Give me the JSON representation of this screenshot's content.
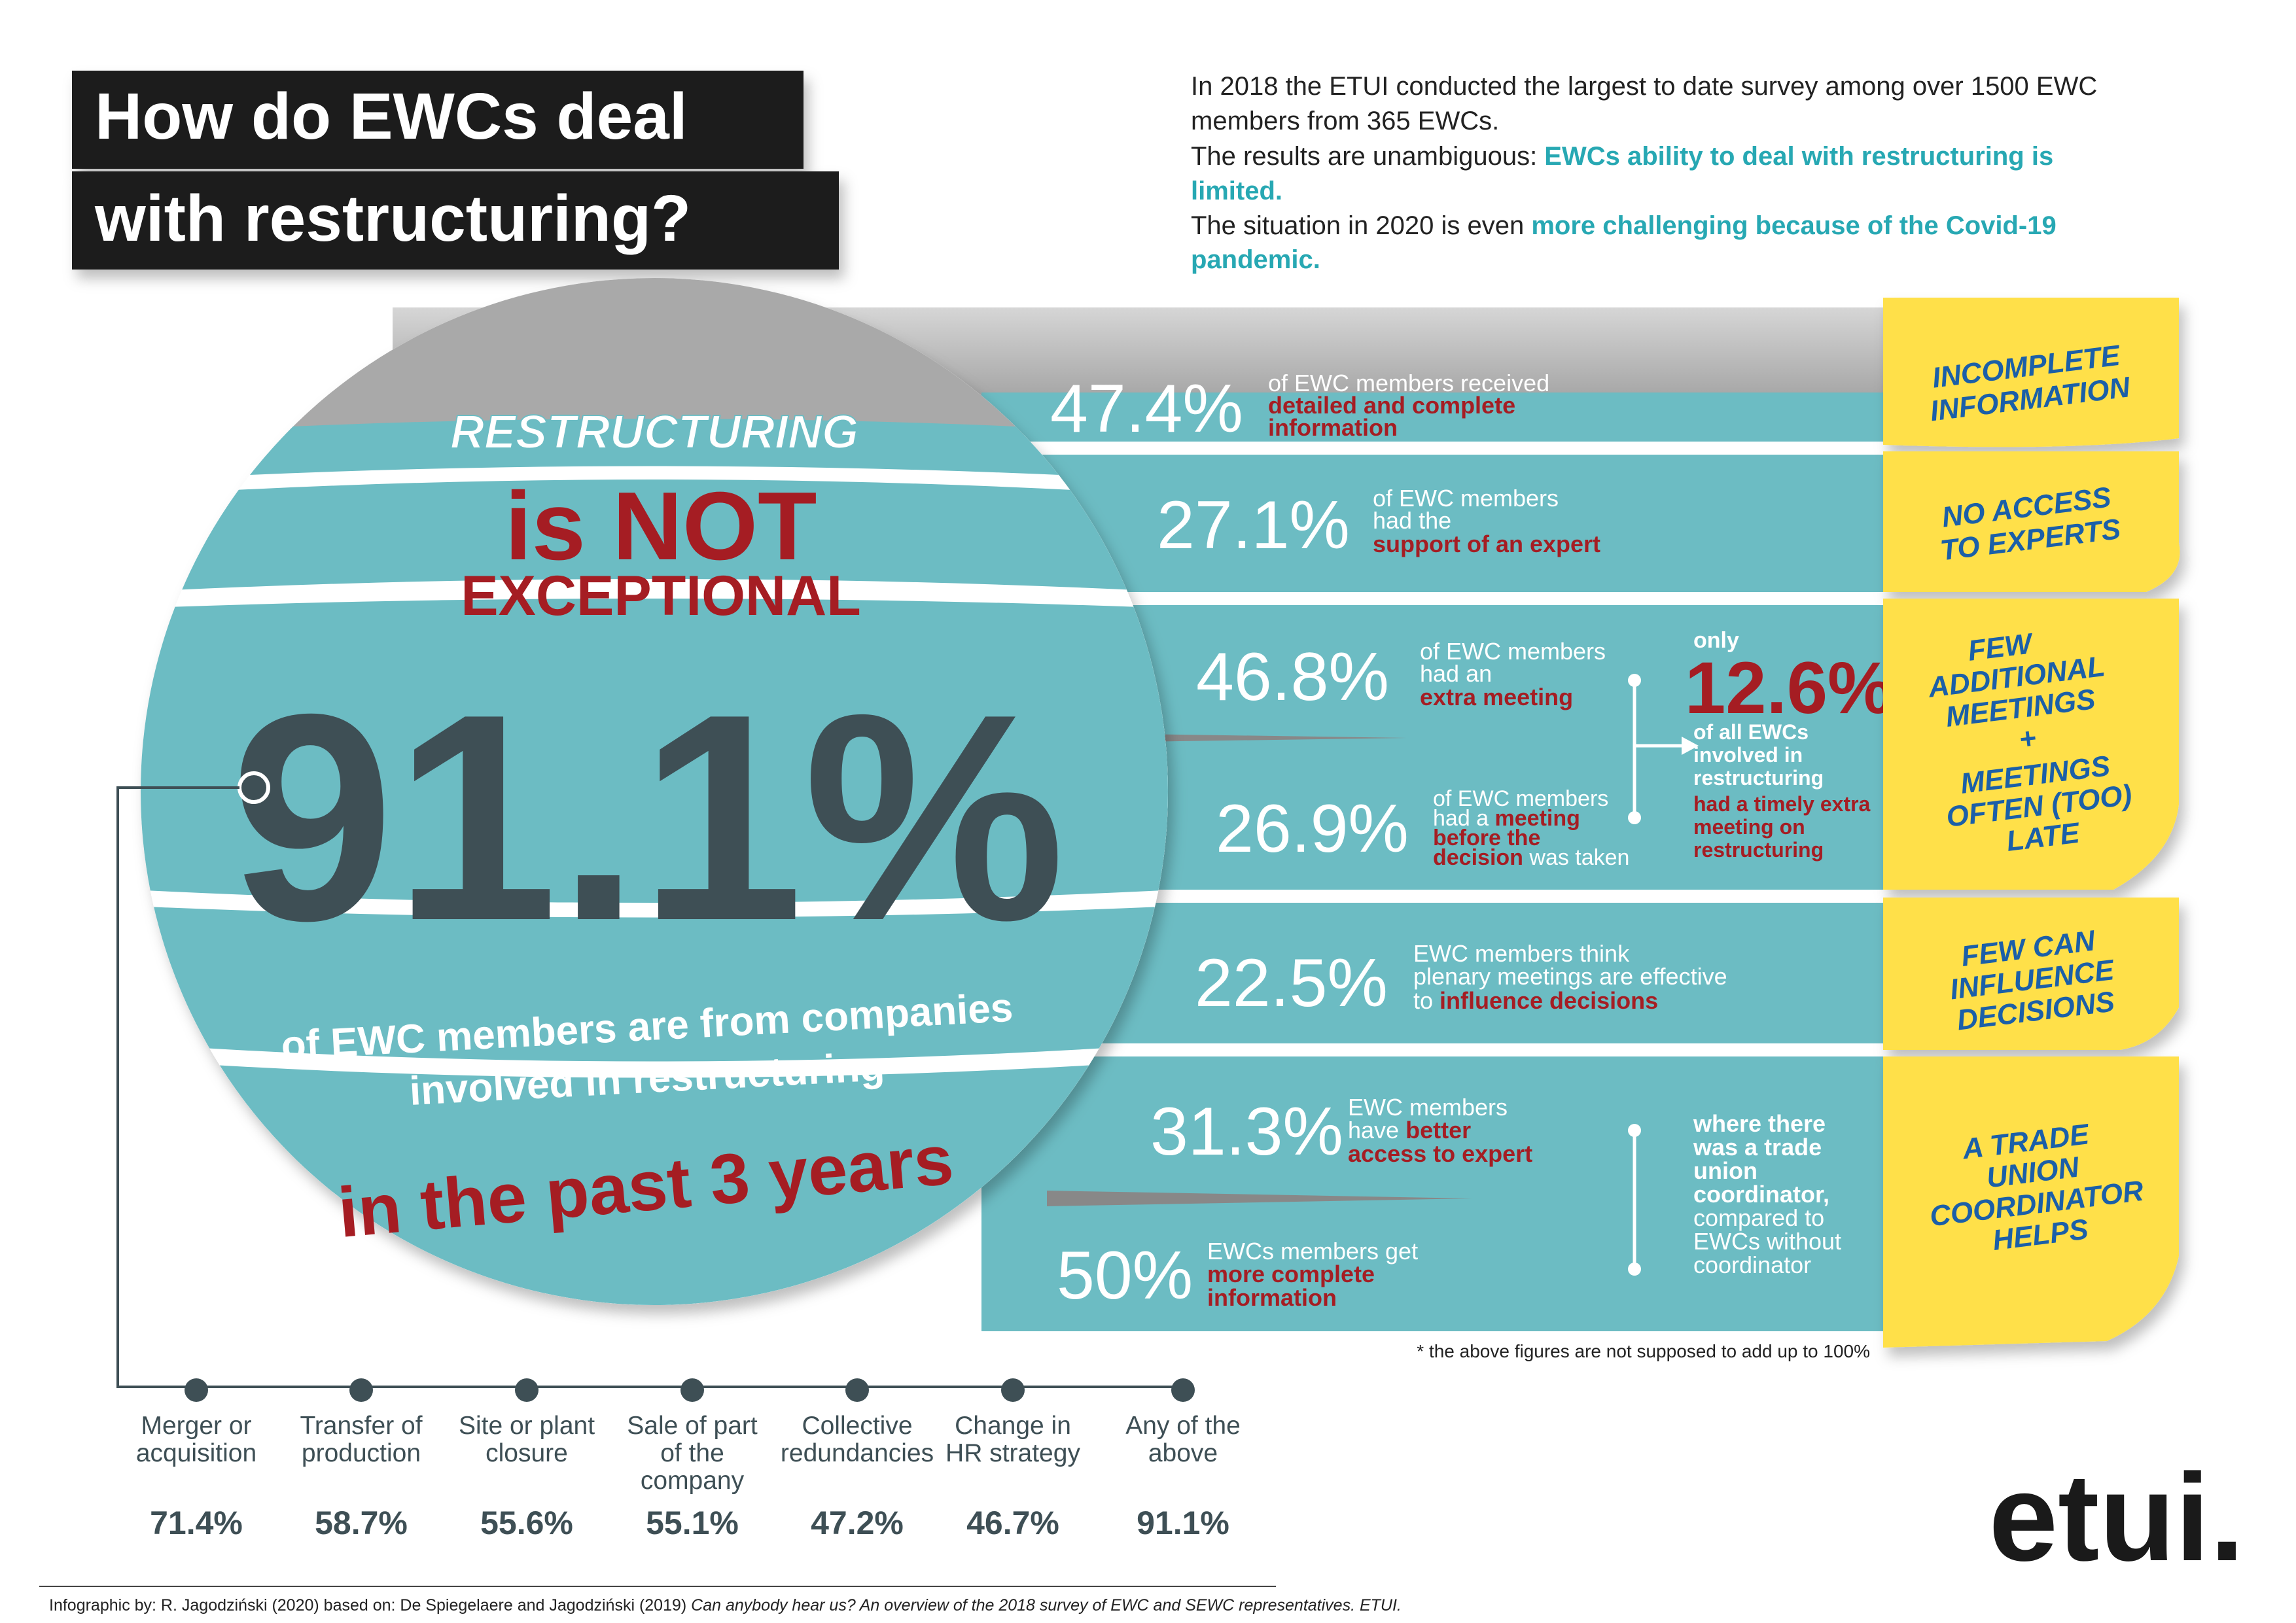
{
  "title": {
    "line1": "How do EWCs deal",
    "line2": "with restructuring?"
  },
  "intro": {
    "line1": "In 2018 the ETUI conducted the largest to date survey among over 1500 EWC",
    "line2": "members from 365 EWCs.",
    "line3_plain": "The results are unambiguous: ",
    "line3_em": "EWCs ability to deal with restructuring is",
    "line4_em": "limited.",
    "line5_plain": "The situation in 2020 is even ",
    "line5_em": "more challenging because of the Covid-19",
    "line6_em": "pandemic."
  },
  "ball": {
    "restructuring": "RESTRUCTURING",
    "is_not": "is NOT",
    "exceptional": "EXCEPTIONAL",
    "big_value": "91.1%",
    "caption1": "of EWC members are from companies",
    "caption2": "involved in restructuring",
    "past": "in the past 3 years"
  },
  "stats": [
    {
      "value": "47.4%",
      "line1": "of EWC members received",
      "line2": "detailed and complete",
      "line3": "information"
    },
    {
      "value": "27.1%",
      "line1": "of EWC members",
      "line2": "had the",
      "line3": "support of an expert"
    },
    {
      "value": "46.8%",
      "line1": "of EWC members",
      "line2": "had an",
      "line3": "extra meeting"
    },
    {
      "value": "26.9%",
      "line1": "of EWC members",
      "line2a": "had a ",
      "line2b": "meeting",
      "line3": "before the",
      "line4a": "decision",
      "line4b": " was taken"
    },
    {
      "value": "22.5%",
      "line1": "EWC members think",
      "line2": "plenary meetings are effective",
      "line3a": "to ",
      "line3b": "influence decisions"
    },
    {
      "value": "31.3%",
      "line1": "EWC members",
      "line2a": "have ",
      "line2b": "better",
      "line3": "access to expert"
    },
    {
      "value": "50%",
      "line1": "EWCs members get",
      "line2": "more complete",
      "line3": "information"
    }
  ],
  "timely": {
    "only": "only",
    "value": "12.6%",
    "l1": "of all EWCs",
    "l2": "involved in",
    "l3": "restructuring",
    "l4": "had a timely extra",
    "l5": "meeting on",
    "l6": "restructuring"
  },
  "coordinator": {
    "l1": "where there",
    "l2": "was a trade",
    "l3": "union",
    "l4": "coordinator,",
    "l5": "compared to",
    "l6": "EWCs without",
    "l7": "coordinator"
  },
  "notes": [
    {
      "lines": [
        "INCOMPLETE",
        "INFORMATION"
      ]
    },
    {
      "lines": [
        "NO ACCESS",
        "TO EXPERTS"
      ]
    },
    {
      "lines": [
        "FEW",
        "ADDITIONAL",
        "MEETINGS",
        "+",
        "MEETINGS",
        "OFTEN (TOO)",
        "LATE"
      ]
    },
    {
      "lines": [
        "FEW CAN",
        "INFLUENCE",
        "DECISIONS"
      ]
    },
    {
      "lines": [
        "A TRADE",
        "UNION",
        "COORDINATOR",
        "HELPS"
      ]
    }
  ],
  "footnote": "* the above figures are not supposed to add up to 100%",
  "types": [
    {
      "l1": "Merger or",
      "l2": "acquisition",
      "l3": "",
      "value": "71.4%"
    },
    {
      "l1": "Transfer of",
      "l2": "production",
      "l3": "",
      "value": "58.7%"
    },
    {
      "l1": "Site or plant",
      "l2": "closure",
      "l3": "",
      "value": "55.6%"
    },
    {
      "l1": "Sale of part",
      "l2": "of the",
      "l3": "company",
      "value": "55.1%"
    },
    {
      "l1": "Collective",
      "l2": "redundancies",
      "l3": "",
      "value": "47.2%"
    },
    {
      "l1": "Change in",
      "l2": "HR strategy",
      "l3": "",
      "value": "46.7%"
    },
    {
      "l1": "Any of the",
      "l2": "above",
      "l3": "",
      "value": "91.1%"
    }
  ],
  "logo": "etui.",
  "credit": {
    "plain": "Infographic by: R. Jagodziński (2020) based on: De Spiegelaere and Jagodziński (2019) ",
    "italic": "Can anybody hear us? An overview of the 2018 survey of EWC and SEWC representatives. ETUI."
  },
  "colors": {
    "teal": "#6cbcc3",
    "dark": "#3e4f55",
    "red": "#a51d23",
    "note": "#ffe04a",
    "noteText": "#1b5fa8",
    "title_bg": "#1a1a1a"
  }
}
